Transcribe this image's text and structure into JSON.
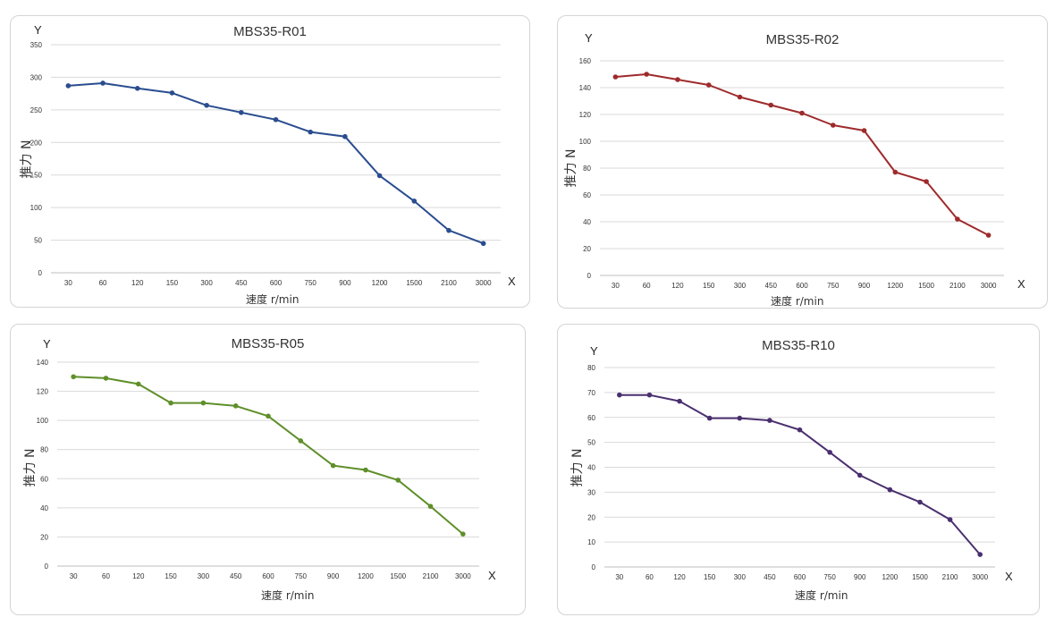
{
  "chart_data": [
    {
      "type": "line",
      "title": "MBS35-R01",
      "ylabel": "推力 N",
      "xlabel": "速度 r/min",
      "x_letter": "X",
      "y_letter": "Y",
      "categories": [
        "30",
        "60",
        "120",
        "150",
        "300",
        "450",
        "600",
        "750",
        "900",
        "1200",
        "1500",
        "2100",
        "3000"
      ],
      "series": [
        {
          "values": [
            287,
            291,
            283,
            276,
            257,
            246,
            235,
            216,
            209,
            149,
            110,
            65,
            45
          ]
        }
      ],
      "ylim": [
        0,
        350
      ],
      "yticks": [
        0,
        50,
        100,
        150,
        200,
        250,
        300,
        350
      ],
      "grid": true,
      "color": "#2a4d8f"
    },
    {
      "type": "line",
      "title": "MBS35-R02",
      "ylabel": "推力 N",
      "xlabel": "速度 r/min",
      "x_letter": "X",
      "y_letter": "Y",
      "categories": [
        "30",
        "60",
        "120",
        "150",
        "300",
        "450",
        "600",
        "750",
        "900",
        "1200",
        "1500",
        "2100",
        "3000"
      ],
      "series": [
        {
          "values": [
            148,
            150,
            146,
            142,
            133,
            127,
            121,
            112,
            108,
            77,
            70,
            42,
            30
          ]
        }
      ],
      "ylim": [
        0,
        160
      ],
      "yticks": [
        0,
        20,
        40,
        60,
        80,
        100,
        120,
        140,
        160
      ],
      "grid": true,
      "color": "#9e2a2b"
    },
    {
      "type": "line",
      "title": "MBS35-R05",
      "ylabel": "推力 N",
      "xlabel": "速度 r/min",
      "x_letter": "X",
      "y_letter": "Y",
      "categories": [
        "30",
        "60",
        "120",
        "150",
        "300",
        "450",
        "600",
        "750",
        "900",
        "1200",
        "1500",
        "2100",
        "3000"
      ],
      "series": [
        {
          "values": [
            130,
            129,
            125,
            112,
            112,
            110,
            103,
            86,
            69,
            66,
            59,
            41,
            22
          ]
        }
      ],
      "ylim": [
        0,
        140
      ],
      "yticks": [
        0,
        20,
        40,
        60,
        80,
        100,
        120,
        140
      ],
      "grid": true,
      "color": "#5f8f2a"
    },
    {
      "type": "line",
      "title": "MBS35-R10",
      "ylabel": "推力 N",
      "xlabel": "速度 r/min",
      "x_letter": "X",
      "y_letter": "Y",
      "categories": [
        "30",
        "60",
        "120",
        "150",
        "300",
        "450",
        "600",
        "750",
        "900",
        "1200",
        "1500",
        "2100",
        "3000"
      ],
      "series": [
        {
          "values": [
            69,
            69,
            66.5,
            59.7,
            59.7,
            58.8,
            55,
            46,
            36.8,
            31,
            26,
            19,
            5
          ]
        }
      ],
      "ylim": [
        0,
        80
      ],
      "yticks": [
        0,
        10,
        20,
        30,
        40,
        50,
        60,
        70,
        80
      ],
      "grid": true,
      "color": "#4a2f6e"
    }
  ]
}
